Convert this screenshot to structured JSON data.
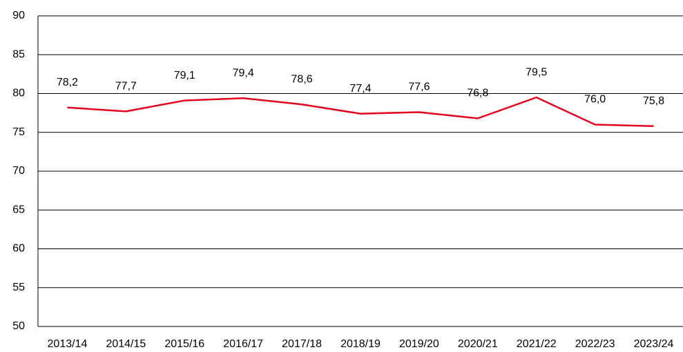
{
  "chart_data": {
    "type": "line",
    "categories": [
      "2013/14",
      "2014/15",
      "2015/16",
      "2016/17",
      "2017/18",
      "2018/19",
      "2019/20",
      "2020/21",
      "2021/22",
      "2022/23",
      "2023/24"
    ],
    "series": [
      {
        "color": "#e3001b",
        "values": [
          78.2,
          77.7,
          79.1,
          79.4,
          78.6,
          77.4,
          77.6,
          76.8,
          79.5,
          76.0,
          75.8
        ],
        "value_labels": [
          "78,2",
          "77,7",
          "79,1",
          "79,4",
          "78,6",
          "77,4",
          "77,6",
          "76,8",
          "79,5",
          "76,0",
          "75,8"
        ]
      }
    ],
    "ylim": [
      50,
      90
    ],
    "yticks": [
      50,
      55,
      60,
      65,
      70,
      75,
      80,
      85,
      90
    ],
    "grid": true
  }
}
